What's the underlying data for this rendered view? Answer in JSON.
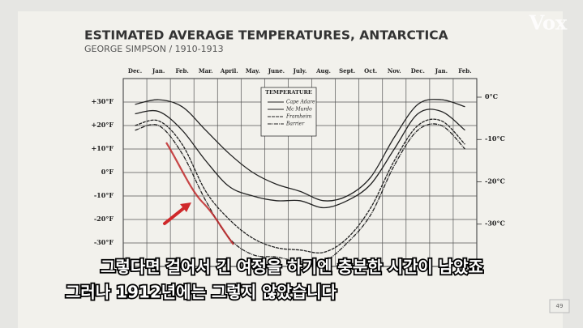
{
  "chart_data": {
    "type": "line",
    "title": "ESTIMATED AVERAGE TEMPERATURES, ANTARCTICA",
    "subtitle": "GEORGE SIMPSON / 1910-1913",
    "logo": "Vox",
    "legend_title": "TEMPERATURE",
    "page_number": "49",
    "captions": [
      "그렇다면 걸어서 긴 여정을 하기엔 충분한 시간이 남았죠",
      "그러나 1912년에는 그렇지 않았습니다"
    ],
    "categories": [
      "Dec.",
      "Jan.",
      "Feb.",
      "Mar.",
      "April.",
      "May.",
      "June.",
      "July.",
      "Aug.",
      "Sept.",
      "Oct.",
      "Nov.",
      "Dec.",
      "Jan.",
      "Feb."
    ],
    "series": [
      {
        "name": "Cape Adare",
        "color": "#222222",
        "values": [
          29,
          31,
          28,
          18,
          8,
          0,
          -5,
          -8,
          -12,
          -10,
          -2,
          15,
          29,
          31,
          28
        ]
      },
      {
        "name": "Mc Murdo",
        "color": "#222222",
        "values": [
          25,
          26,
          18,
          5,
          -6,
          -10,
          -12,
          -12,
          -15,
          -12,
          -5,
          10,
          25,
          26,
          18
        ]
      },
      {
        "name": "Framheim",
        "color": "#222222",
        "values": [
          20,
          22,
          12,
          -8,
          -20,
          -28,
          -32,
          -33,
          -34,
          -28,
          -15,
          5,
          20,
          22,
          12
        ]
      },
      {
        "name": "Barrier",
        "color": "#222222",
        "values": [
          18,
          20,
          8,
          -12,
          -28,
          -35,
          -36,
          -38,
          -38,
          -30,
          -18,
          3,
          18,
          20,
          10
        ]
      }
    ],
    "ylim": [
      -40,
      40
    ],
    "yticks": [
      {
        "value": 30,
        "label": "+30°F"
      },
      {
        "value": 20,
        "label": "+20°F"
      },
      {
        "value": 10,
        "label": "+10°F"
      },
      {
        "value": 0,
        "label": "0°F"
      },
      {
        "value": -10,
        "label": "-10°F"
      },
      {
        "value": -20,
        "label": "-20°F"
      },
      {
        "value": -30,
        "label": "-30°F"
      }
    ],
    "y2lim": [
      -40,
      4.4
    ],
    "y2ticks": [
      {
        "value": 0,
        "label": "0°C"
      },
      {
        "value": -10,
        "label": "-10°C"
      },
      {
        "value": -20,
        "label": "-20°C"
      },
      {
        "value": -30,
        "label": "-30°C"
      }
    ],
    "grid": true
  }
}
